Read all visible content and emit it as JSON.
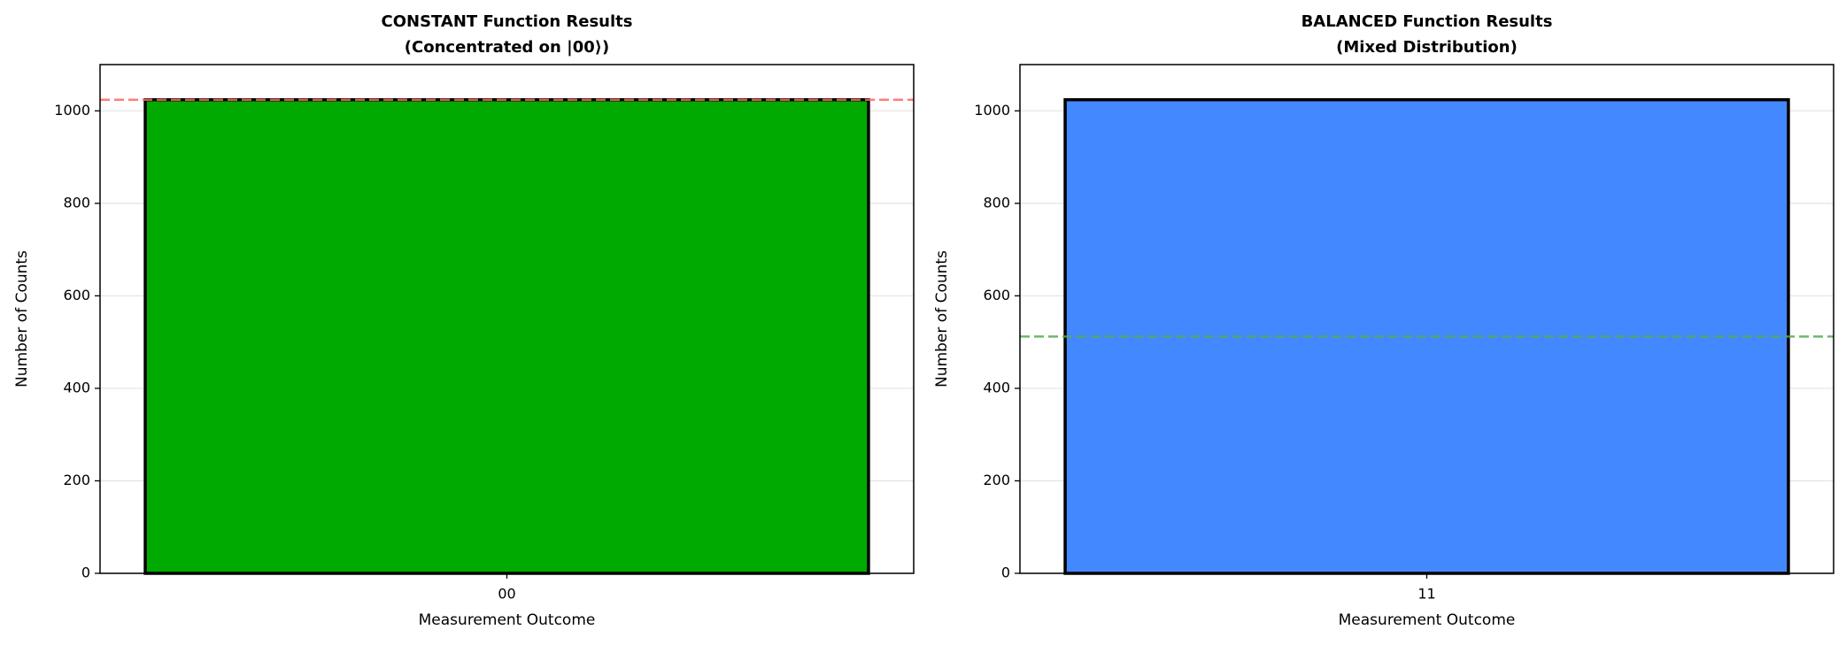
{
  "chart_data": [
    {
      "type": "bar",
      "title": "CONSTANT Function Results",
      "subtitle": "(Concentrated on |00⟩)",
      "xlabel": "Measurement Outcome",
      "ylabel": "Number of Counts",
      "categories": [
        "00"
      ],
      "values": [
        1024
      ],
      "color": "#00aa00",
      "ylim": [
        0,
        1100
      ],
      "yticks": [
        0,
        200,
        400,
        600,
        800,
        1000
      ],
      "grid": true,
      "reference_line": {
        "value": 1024,
        "color": "#ff6666"
      }
    },
    {
      "type": "bar",
      "title": "BALANCED Function Results",
      "subtitle": "(Mixed Distribution)",
      "xlabel": "Measurement Outcome",
      "ylabel": "Number of Counts",
      "categories": [
        "11"
      ],
      "values": [
        1024
      ],
      "color": "#4488ff",
      "ylim": [
        0,
        1100
      ],
      "yticks": [
        0,
        200,
        400,
        600,
        800,
        1000
      ],
      "grid": true,
      "reference_line": {
        "value": 512,
        "color": "#55aa55"
      }
    }
  ]
}
